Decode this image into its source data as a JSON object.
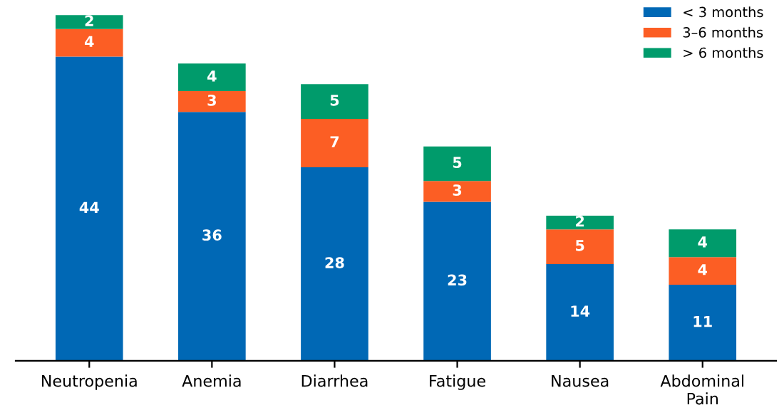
{
  "chart_data": {
    "type": "bar",
    "stacked": true,
    "data_labels": true,
    "legend": "top right",
    "grid": false,
    "tick_labels": "x",
    "categories": [
      "Neutropenia",
      "Anemia",
      "Diarrhea",
      "Fatigue",
      "Nausea",
      "Abdominal\nPain"
    ],
    "series": [
      {
        "name": "< 3 months",
        "color": "#0068b5",
        "values": [
          44,
          36,
          28,
          23,
          14,
          11
        ]
      },
      {
        "name": "3–6 months",
        "color": "#fc5e24",
        "values": [
          4,
          3,
          7,
          3,
          5,
          4
        ]
      },
      {
        "name": "> 6 months",
        "color": "#009b6b",
        "values": [
          2,
          4,
          5,
          5,
          2,
          4
        ]
      }
    ]
  }
}
